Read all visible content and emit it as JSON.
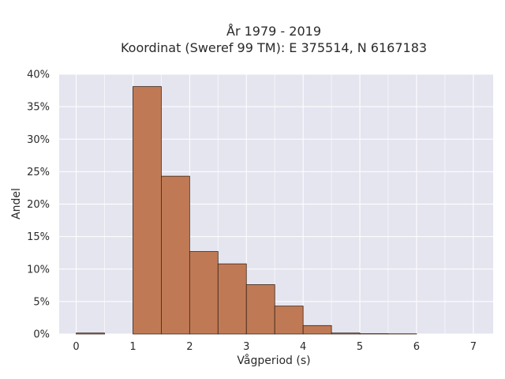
{
  "chart_data": {
    "type": "bar",
    "title_lines": [
      "År 1979 - 2019",
      "Koordinat (Sweref 99 TM): E 375514, N 6167183"
    ],
    "xlabel": "Vågperiod (s)",
    "ylabel": "Andel",
    "xlim": [
      -0.3,
      7.35
    ],
    "ylim": [
      0,
      40
    ],
    "x_ticks": [
      0,
      1,
      2,
      3,
      4,
      5,
      6,
      7
    ],
    "y_ticks": [
      0,
      5,
      10,
      15,
      20,
      25,
      30,
      35,
      40
    ],
    "y_tick_labels": [
      "0%",
      "5%",
      "10%",
      "15%",
      "20%",
      "25%",
      "30%",
      "35%",
      "40%"
    ],
    "bin_width": 0.5,
    "bins": [
      {
        "x0": 0.0,
        "value": 0.15
      },
      {
        "x0": 0.5,
        "value": 0.0
      },
      {
        "x0": 1.0,
        "value": 38.1
      },
      {
        "x0": 1.5,
        "value": 24.3
      },
      {
        "x0": 2.0,
        "value": 12.7
      },
      {
        "x0": 2.5,
        "value": 10.8
      },
      {
        "x0": 3.0,
        "value": 7.6
      },
      {
        "x0": 3.5,
        "value": 4.3
      },
      {
        "x0": 4.0,
        "value": 1.3
      },
      {
        "x0": 4.5,
        "value": 0.15
      },
      {
        "x0": 5.0,
        "value": 0.05
      },
      {
        "x0": 5.5,
        "value": 0.03
      }
    ],
    "grid": true,
    "colors": {
      "bar": "#bf7a55",
      "bar_edge": "#3a2418",
      "plot_bg": "#e5e5f0",
      "grid": "#ffffff"
    }
  }
}
